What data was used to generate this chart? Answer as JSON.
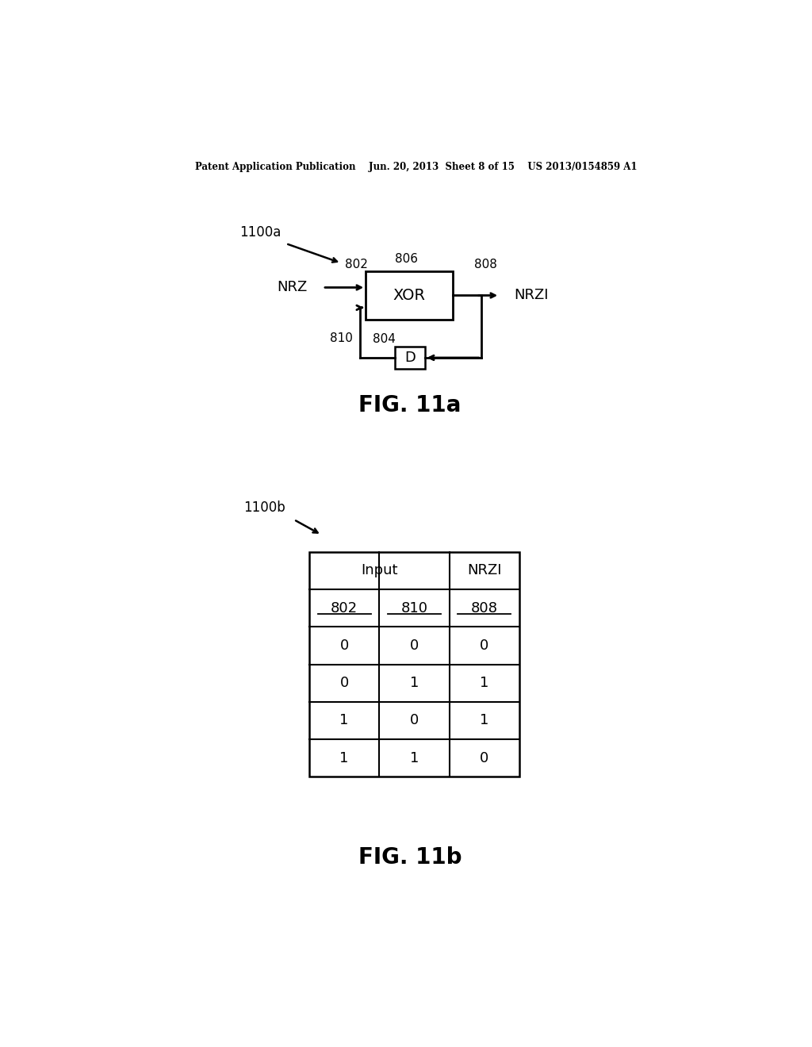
{
  "bg_color": "#ffffff",
  "header_text": "Patent Application Publication    Jun. 20, 2013  Sheet 8 of 15    US 2013/0154859 A1",
  "fig11a_label": "FIG. 11a",
  "fig11b_label": "FIG. 11b",
  "label_1100a": "1100a",
  "label_1100b": "1100b",
  "xor_label": "XOR",
  "d_label": "D",
  "nrz_label": "NRZ",
  "nrzi_label": "NRZI",
  "n802": "802",
  "n804": "804",
  "n806": "806",
  "n808": "808",
  "n810": "810",
  "table_header1": "Input",
  "table_header2": "NRZI",
  "table_col1": "802",
  "table_col2": "810",
  "table_col3": "808",
  "table_data": [
    [
      0,
      0,
      0
    ],
    [
      0,
      1,
      1
    ],
    [
      1,
      0,
      1
    ],
    [
      1,
      1,
      0
    ]
  ]
}
